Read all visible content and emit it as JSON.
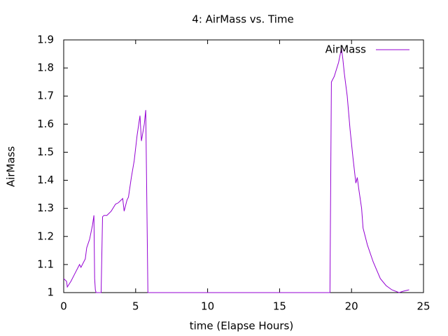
{
  "chart_data": {
    "type": "line",
    "title": "4: AirMass vs. Time",
    "x_label": "time (Elapse Hours)",
    "y_label": "AirMass",
    "x": [
      0,
      0.2,
      0.25,
      0.5,
      0.8,
      1.1,
      1.2,
      1.5,
      1.6,
      1.8,
      2.0,
      2.1,
      2.15,
      2.2,
      2.25,
      2.6,
      2.7,
      2.8,
      3.0,
      3.3,
      3.6,
      3.8,
      4.1,
      4.2,
      4.4,
      4.5,
      4.7,
      4.9,
      5.1,
      5.3,
      5.4,
      5.6,
      5.7,
      5.8,
      5.85,
      18.5,
      18.6,
      18.8,
      19.1,
      19.3,
      19.4,
      19.5,
      19.7,
      19.9,
      20.1,
      20.3,
      20.4,
      20.5,
      20.7,
      20.8,
      21.1,
      21.5,
      22.0,
      22.4,
      22.8,
      23.3,
      23.6,
      24.0
    ],
    "series": [
      {
        "name": "AirMass",
        "color": "#9400d3",
        "values": [
          1.05,
          1.04,
          1.02,
          1.04,
          1.07,
          1.1,
          1.09,
          1.12,
          1.16,
          1.19,
          1.24,
          1.275,
          1.05,
          1.01,
          1.0,
          1.0,
          1.27,
          1.275,
          1.275,
          1.29,
          1.315,
          1.32,
          1.335,
          1.29,
          1.33,
          1.34,
          1.41,
          1.47,
          1.56,
          1.63,
          1.54,
          1.6,
          1.65,
          1.22,
          1.0,
          1.0,
          1.75,
          1.77,
          1.82,
          1.87,
          1.83,
          1.78,
          1.7,
          1.58,
          1.48,
          1.39,
          1.41,
          1.37,
          1.3,
          1.23,
          1.17,
          1.11,
          1.05,
          1.025,
          1.01,
          1.0,
          1.005,
          1.01
        ]
      }
    ],
    "xlim": [
      0,
      25
    ],
    "xticks": [
      0,
      5,
      10,
      15,
      20,
      25
    ],
    "ylim": [
      1,
      1.9
    ],
    "yticks": [
      1,
      1.1,
      1.2,
      1.3,
      1.4,
      1.5,
      1.6,
      1.7,
      1.8,
      1.9
    ],
    "legend": "top-right"
  }
}
